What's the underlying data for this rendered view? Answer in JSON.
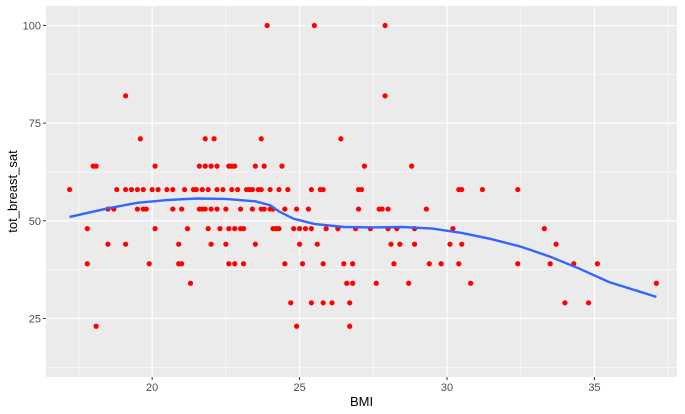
{
  "chart_data": {
    "type": "scatter",
    "title": "",
    "xlabel": "BMI",
    "ylabel": "tot_breast_sat",
    "xlim": [
      16.4,
      37.8
    ],
    "ylim": [
      10,
      105
    ],
    "x_ticks": [
      20,
      25,
      30,
      35
    ],
    "y_ticks": [
      25,
      50,
      75,
      100
    ],
    "grid": true,
    "panel_color": "#ebebeb",
    "grid_color": "#ffffff",
    "point_color": "#ff0000",
    "smooth_color": "#3366ff",
    "points": [
      [
        17.2,
        58
      ],
      [
        17.8,
        48
      ],
      [
        17.8,
        39
      ],
      [
        18.0,
        64
      ],
      [
        18.1,
        64
      ],
      [
        18.1,
        23
      ],
      [
        18.5,
        53
      ],
      [
        18.5,
        44
      ],
      [
        18.7,
        53
      ],
      [
        18.8,
        58
      ],
      [
        19.1,
        82
      ],
      [
        19.1,
        58
      ],
      [
        19.1,
        44
      ],
      [
        19.3,
        58
      ],
      [
        19.5,
        58
      ],
      [
        19.5,
        53
      ],
      [
        19.6,
        71
      ],
      [
        19.7,
        58
      ],
      [
        19.7,
        53
      ],
      [
        19.8,
        53
      ],
      [
        19.9,
        39
      ],
      [
        20.0,
        58
      ],
      [
        20.1,
        64
      ],
      [
        20.1,
        48
      ],
      [
        20.2,
        58
      ],
      [
        20.5,
        58
      ],
      [
        20.7,
        58
      ],
      [
        20.7,
        53
      ],
      [
        20.9,
        44
      ],
      [
        20.9,
        39
      ],
      [
        21.0,
        53
      ],
      [
        21.0,
        39
      ],
      [
        21.1,
        58
      ],
      [
        21.2,
        48
      ],
      [
        21.3,
        34
      ],
      [
        21.4,
        58
      ],
      [
        21.5,
        58
      ],
      [
        21.6,
        64
      ],
      [
        21.6,
        53
      ],
      [
        21.7,
        58
      ],
      [
        21.7,
        53
      ],
      [
        21.8,
        71
      ],
      [
        21.8,
        64
      ],
      [
        21.8,
        53
      ],
      [
        21.9,
        48
      ],
      [
        21.9,
        58
      ],
      [
        22.0,
        64
      ],
      [
        22.0,
        53
      ],
      [
        22.0,
        44
      ],
      [
        22.1,
        71
      ],
      [
        22.2,
        64
      ],
      [
        22.2,
        58
      ],
      [
        22.2,
        53
      ],
      [
        22.3,
        48
      ],
      [
        22.4,
        58
      ],
      [
        22.5,
        53
      ],
      [
        22.5,
        44
      ],
      [
        22.6,
        64
      ],
      [
        22.6,
        48
      ],
      [
        22.6,
        39
      ],
      [
        22.7,
        64
      ],
      [
        22.7,
        58
      ],
      [
        22.8,
        64
      ],
      [
        22.8,
        48
      ],
      [
        22.8,
        39
      ],
      [
        22.9,
        58
      ],
      [
        23.0,
        53
      ],
      [
        23.0,
        48
      ],
      [
        23.1,
        48
      ],
      [
        23.1,
        39
      ],
      [
        23.2,
        58
      ],
      [
        23.3,
        58
      ],
      [
        23.4,
        58
      ],
      [
        23.4,
        53
      ],
      [
        23.5,
        64
      ],
      [
        23.5,
        44
      ],
      [
        23.6,
        58
      ],
      [
        23.7,
        71
      ],
      [
        23.7,
        58
      ],
      [
        23.7,
        53
      ],
      [
        23.8,
        64
      ],
      [
        23.8,
        53
      ],
      [
        23.9,
        100
      ],
      [
        24.0,
        58
      ],
      [
        24.0,
        53
      ],
      [
        24.1,
        53
      ],
      [
        24.1,
        48
      ],
      [
        24.2,
        48
      ],
      [
        24.3,
        58
      ],
      [
        24.3,
        48
      ],
      [
        24.4,
        64
      ],
      [
        24.5,
        53
      ],
      [
        24.5,
        39
      ],
      [
        24.6,
        58
      ],
      [
        24.7,
        29
      ],
      [
        24.8,
        48
      ],
      [
        24.9,
        23
      ],
      [
        24.9,
        53
      ],
      [
        25.0,
        44
      ],
      [
        25.0,
        48
      ],
      [
        25.1,
        39
      ],
      [
        25.2,
        48
      ],
      [
        25.3,
        53
      ],
      [
        25.4,
        58
      ],
      [
        25.4,
        29
      ],
      [
        25.4,
        48
      ],
      [
        25.5,
        100
      ],
      [
        25.6,
        44
      ],
      [
        25.7,
        58
      ],
      [
        25.8,
        58
      ],
      [
        25.8,
        39
      ],
      [
        25.8,
        29
      ],
      [
        25.9,
        48
      ],
      [
        26.1,
        29
      ],
      [
        26.3,
        48
      ],
      [
        26.4,
        71
      ],
      [
        26.5,
        39
      ],
      [
        26.6,
        34
      ],
      [
        26.7,
        29
      ],
      [
        26.7,
        23
      ],
      [
        26.8,
        39
      ],
      [
        26.8,
        34
      ],
      [
        26.9,
        48
      ],
      [
        27.0,
        58
      ],
      [
        27.0,
        53
      ],
      [
        27.1,
        58
      ],
      [
        27.2,
        64
      ],
      [
        27.4,
        48
      ],
      [
        27.6,
        34
      ],
      [
        27.7,
        53
      ],
      [
        27.8,
        53
      ],
      [
        27.9,
        100
      ],
      [
        27.9,
        82
      ],
      [
        28.0,
        53
      ],
      [
        28.0,
        48
      ],
      [
        28.1,
        44
      ],
      [
        28.2,
        39
      ],
      [
        28.3,
        48
      ],
      [
        28.4,
        44
      ],
      [
        28.7,
        34
      ],
      [
        28.8,
        64
      ],
      [
        28.9,
        48
      ],
      [
        28.9,
        44
      ],
      [
        29.3,
        53
      ],
      [
        29.4,
        39
      ],
      [
        29.8,
        39
      ],
      [
        30.1,
        44
      ],
      [
        30.2,
        48
      ],
      [
        30.4,
        39
      ],
      [
        30.4,
        58
      ],
      [
        30.5,
        58
      ],
      [
        30.5,
        44
      ],
      [
        30.8,
        34
      ],
      [
        31.2,
        58
      ],
      [
        32.4,
        58
      ],
      [
        32.4,
        39
      ],
      [
        33.3,
        48
      ],
      [
        33.5,
        39
      ],
      [
        33.7,
        44
      ],
      [
        34.0,
        29
      ],
      [
        34.3,
        39
      ],
      [
        34.8,
        29
      ],
      [
        35.1,
        39
      ],
      [
        37.1,
        34
      ]
    ],
    "smooth_line": [
      [
        17.2,
        51
      ],
      [
        18.5,
        53.2
      ],
      [
        19.5,
        54.6
      ],
      [
        20.5,
        55.3
      ],
      [
        21.5,
        55.7
      ],
      [
        22.5,
        55.6
      ],
      [
        23.5,
        55.0
      ],
      [
        24.0,
        54.0
      ],
      [
        24.3,
        52.4
      ],
      [
        24.8,
        50.5
      ],
      [
        25.5,
        49.2
      ],
      [
        26.5,
        48.4
      ],
      [
        27.5,
        48.3
      ],
      [
        28.5,
        48.4
      ],
      [
        29.5,
        48.0
      ],
      [
        30.5,
        46.9
      ],
      [
        31.5,
        45.3
      ],
      [
        32.5,
        43.4
      ],
      [
        33.5,
        40.8
      ],
      [
        34.5,
        37.7
      ],
      [
        35.5,
        34.3
      ],
      [
        37.1,
        30.5
      ]
    ]
  }
}
